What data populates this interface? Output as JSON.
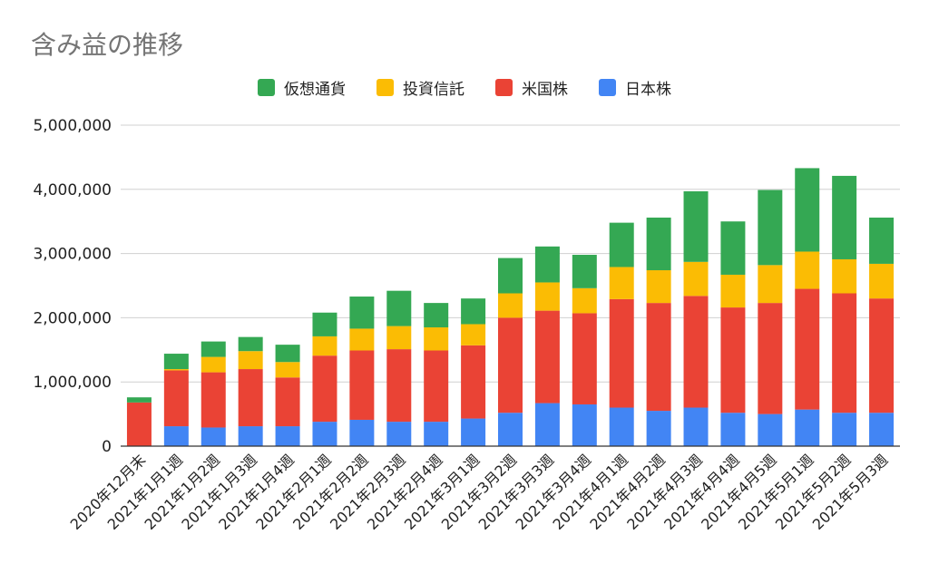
{
  "chart_data": {
    "type": "bar",
    "stacked": true,
    "title": "含み益の推移",
    "xlabel": "",
    "ylabel": "",
    "ylim": [
      0,
      5000000
    ],
    "yticks": [
      "0",
      "1,000,000",
      "2,000,000",
      "3,000,000",
      "4,000,000",
      "5,000,000"
    ],
    "grid": true,
    "legend_position": "top",
    "categories": [
      "2020年12月末",
      "2021年1月1週",
      "2021年1月2週",
      "2021年1月3週",
      "2021年1月4週",
      "2021年2月1週",
      "2021年2月2週",
      "2021年2月3週",
      "2021年2月4週",
      "2021年3月1週",
      "2021年3月2週",
      "2021年3月3週",
      "2021年3月4週",
      "2021年4月1週",
      "2021年4月2週",
      "2021年4月3週",
      "2021年4月4週",
      "2021年4月5週",
      "2021年5月1週",
      "2021年5月2週",
      "2021年5月3週"
    ],
    "series": [
      {
        "name": "日本株",
        "color": "#4285f4",
        "values": [
          0,
          310000,
          290000,
          310000,
          310000,
          380000,
          410000,
          380000,
          380000,
          430000,
          520000,
          670000,
          650000,
          600000,
          550000,
          600000,
          520000,
          500000,
          570000,
          520000,
          520000
        ]
      },
      {
        "name": "米国株",
        "color": "#ea4335",
        "values": [
          680000,
          870000,
          860000,
          890000,
          760000,
          1030000,
          1080000,
          1130000,
          1110000,
          1140000,
          1480000,
          1440000,
          1420000,
          1690000,
          1680000,
          1740000,
          1640000,
          1730000,
          1880000,
          1860000,
          1780000
        ]
      },
      {
        "name": "投資信託",
        "color": "#fbbc04",
        "values": [
          0,
          20000,
          240000,
          280000,
          240000,
          300000,
          340000,
          360000,
          360000,
          330000,
          380000,
          440000,
          390000,
          500000,
          510000,
          530000,
          510000,
          590000,
          580000,
          530000,
          540000
        ]
      },
      {
        "name": "仮想通貨",
        "color": "#34a853",
        "values": [
          80000,
          240000,
          240000,
          220000,
          270000,
          370000,
          500000,
          550000,
          380000,
          400000,
          550000,
          560000,
          520000,
          690000,
          820000,
          1100000,
          830000,
          1170000,
          1300000,
          1300000,
          720000
        ]
      }
    ]
  }
}
